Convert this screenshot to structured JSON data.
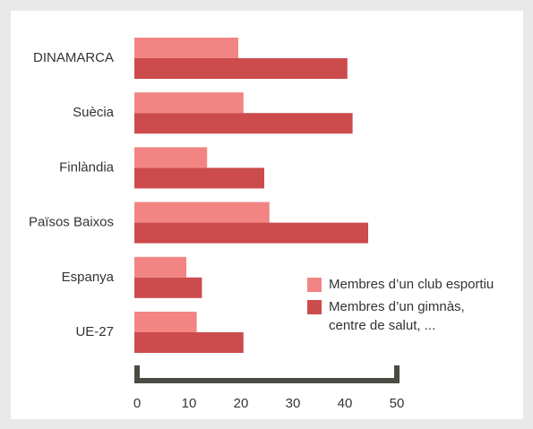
{
  "chart_data": {
    "type": "bar",
    "orientation": "horizontal",
    "categories": [
      "DINAMARCA",
      "Suècia",
      "Finlàndia",
      "Països Baixos",
      "Espanya",
      "UE-27"
    ],
    "series": [
      {
        "name": "Membres d’un club esportiu",
        "color": "#f28583",
        "values": [
          20,
          21,
          14,
          26,
          10,
          12
        ]
      },
      {
        "name": "Membres d’un gimnàs, centre de salut, ...",
        "color": "#cc4b4c",
        "values": [
          41,
          42,
          25,
          45,
          13,
          21
        ]
      }
    ],
    "xlim": [
      0,
      50
    ],
    "xticks": [
      0,
      10,
      20,
      30,
      40,
      50
    ],
    "grid": false,
    "legend": "lower right"
  }
}
